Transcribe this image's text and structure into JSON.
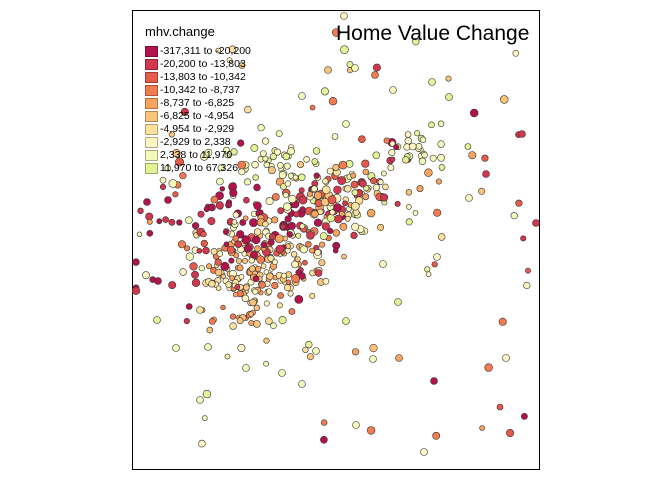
{
  "map": {
    "title": "Home Value Change",
    "legend_title": "mhv.change",
    "legend": [
      {
        "label": "-317,311 to -20,200",
        "color": "#b2134c"
      },
      {
        "label": "-20,200 to -13,803",
        "color": "#d1374e"
      },
      {
        "label": "-13,803 to -10,342",
        "color": "#e65a4b"
      },
      {
        "label": "-10,342 to -8,737",
        "color": "#f27b4f"
      },
      {
        "label": "-8,737 to -6,825",
        "color": "#f8a35f"
      },
      {
        "label": "-6,825 to -4,954",
        "color": "#fbc47c"
      },
      {
        "label": "-4,954 to -2,929",
        "color": "#fde29e"
      },
      {
        "label": "-2,929 to 2,338",
        "color": "#fef5c2"
      },
      {
        "label": "2,338 to 11,970",
        "color": "#f4f8b8"
      },
      {
        "label": "11,970 to 67,326",
        "color": "#e3f295"
      }
    ]
  }
}
